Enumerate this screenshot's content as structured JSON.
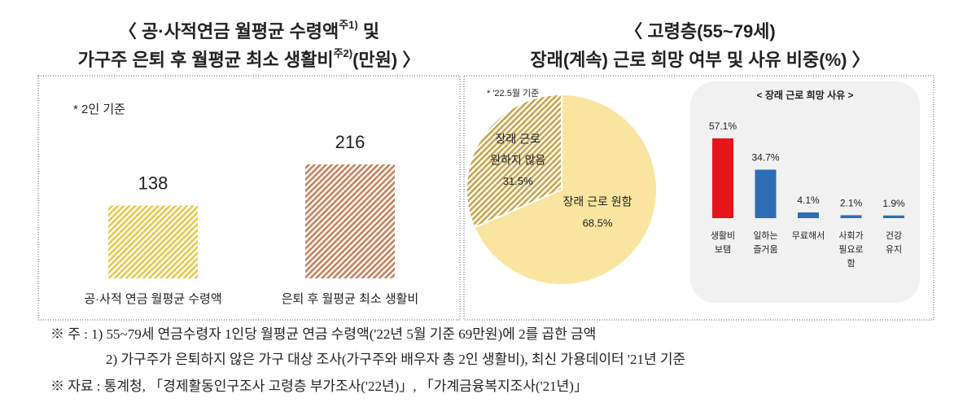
{
  "chart_data": [
    {
      "type": "bar",
      "title": [
        [
          "〈 공·사적연금 월평균 수령액",
          "주1)",
          " 및"
        ],
        [
          "가구주 은퇴 후 월평균 최소 생활비",
          "주2)",
          "(만원) 〉"
        ]
      ],
      "subtitle": "* 2인 기준",
      "categories": [
        [
          "공·사적 연금 월평균 수령액"
        ],
        [
          "은퇴 후 월평균 최소 생활비"
        ]
      ],
      "values": [
        138,
        216
      ],
      "colors": [
        "#e8c84a",
        "#c9805a"
      ],
      "hatch": true
    },
    {
      "type": "pie",
      "title": [
        [
          "〈 고령층(55~79세)"
        ],
        [
          "장래(계속) 근로 희망 여부 및 사유 비중(%) 〉"
        ]
      ],
      "subtitle": "* '22.5월 기준",
      "categories": [
        [
          "장래 근로 원함"
        ],
        [
          "장래 근로",
          "원하지 않음"
        ]
      ],
      "values": [
        68.5,
        31.5
      ],
      "value_labels": [
        "68.5%",
        "31.5%"
      ],
      "colors": [
        "#fae5a0",
        "#c8a54a"
      ],
      "hatch": [
        false,
        true
      ]
    },
    {
      "type": "bar",
      "title": [
        [
          "< 장래 근로 희망 사유 >"
        ]
      ],
      "categories": [
        [
          "생활비",
          "보탬"
        ],
        [
          "일하는",
          "즐거움"
        ],
        [
          "무료해서"
        ],
        [
          "사회가",
          "필요로",
          "함"
        ],
        [
          "건강",
          "유지"
        ]
      ],
      "values": [
        57.1,
        34.7,
        4.1,
        2.1,
        1.9
      ],
      "value_labels": [
        "57.1%",
        "34.7%",
        "4.1%",
        "2.1%",
        "1.9%"
      ],
      "colors": [
        "#e8141c",
        "#2e6db4",
        "#2e6db4",
        "#2e6db4",
        "#2e6db4"
      ],
      "hatch": false
    }
  ],
  "notes": [
    "※ 주 : 1) 55~79세 연금수령자 1인당 월평균 연금 수령액('22년 5월 기준 69만원)에 2를 곱한 금액",
    "2) 가구주가 은퇴하지 않은 가구 대상 조사(가구주와 배우자 총 2인 생활비), 최신 가용데이터 '21년 기준",
    "※ 자료 : 통계청, 「경제활동인구조사 고령층 부가조사('22년)」, 「가계금융복지조사('21년)」"
  ]
}
